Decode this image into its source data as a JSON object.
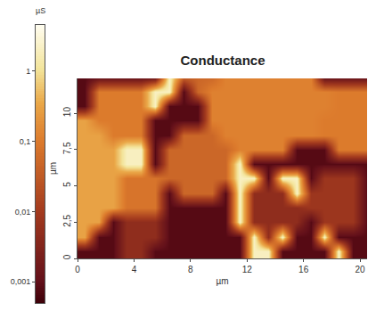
{
  "chart_data": {
    "type": "heatmap",
    "title": "Conductance",
    "x_label": "µm",
    "y_label": "µm",
    "colorbar_title": "µS",
    "x": [
      0.5,
      1.5,
      2.5,
      3.5,
      4.5,
      5.5,
      6.5,
      7.5,
      8.5,
      9.5,
      10.5,
      11.5,
      12.5,
      13.5,
      14.5,
      15.5,
      16.5,
      17.5,
      18.5,
      19.5,
      20.5
    ],
    "y": [
      0.5,
      1.5,
      2.5,
      3.5,
      4.5,
      5.5,
      6.5,
      7.5,
      8.5,
      9.5,
      10.5,
      11.5,
      12.5
    ],
    "cells": [
      [
        0.0008,
        0.0008,
        0.0008,
        0.005,
        0.005,
        0.0008,
        0.0008,
        0.0008,
        0.0008,
        0.0008,
        0.0008,
        0.0008,
        2,
        2,
        0.0008,
        0.0008,
        0.0008,
        0.0008,
        2,
        0.0008,
        0.0008
      ],
      [
        0.3,
        0.0008,
        0.0008,
        0.005,
        0.005,
        0.005,
        0.0008,
        0.0008,
        0.0008,
        0.0008,
        0.0008,
        0.0008,
        2,
        0.005,
        2,
        0.0008,
        0.0008,
        2,
        0.0008,
        0.0008,
        0.0008
      ],
      [
        0.3,
        0.3,
        0.0008,
        0.005,
        0.005,
        0.005,
        0.0008,
        0.0008,
        0.0008,
        0.0008,
        0.0008,
        2,
        0.005,
        0.005,
        0.005,
        0.005,
        0.0008,
        0.008,
        0.008,
        0.008,
        0.0008
      ],
      [
        0.3,
        0.3,
        0.3,
        0.08,
        0.08,
        0.08,
        0.0008,
        0.0008,
        0.0008,
        0.0008,
        0.0008,
        2,
        0.005,
        0.005,
        0.005,
        0.005,
        0.008,
        0.008,
        0.008,
        0.008,
        0.0008
      ],
      [
        0.3,
        0.3,
        0.3,
        0.08,
        0.08,
        0.08,
        0.0008,
        0.05,
        0.05,
        0.05,
        0.0008,
        2,
        0.005,
        0.005,
        0.005,
        2,
        0.008,
        0.008,
        0.008,
        0.008,
        0.0008
      ],
      [
        0.3,
        0.3,
        0.3,
        0.08,
        0.08,
        0.08,
        0.05,
        0.05,
        0.05,
        0.05,
        0.05,
        2,
        2,
        0.0008,
        2,
        2,
        0.0008,
        0.008,
        0.008,
        0.008,
        0.0008
      ],
      [
        0.3,
        0.3,
        0.3,
        2,
        2,
        0.0008,
        0.05,
        0.05,
        0.05,
        0.05,
        0.05,
        2,
        0.0008,
        0.0008,
        0.0008,
        0.0008,
        0.0008,
        0.0008,
        0.0008,
        0.0008,
        0.0008
      ],
      [
        0.3,
        0.3,
        0.3,
        2,
        2,
        0.0008,
        0.05,
        0.05,
        0.05,
        0.05,
        0.05,
        0.12,
        0.12,
        0.12,
        0.12,
        0.0008,
        0.0008,
        0.0008,
        0.1,
        0.1,
        0.1
      ],
      [
        0.3,
        0.3,
        0.1,
        0.1,
        0.1,
        0.0008,
        0.0008,
        0.05,
        0.05,
        0.05,
        0.12,
        0.12,
        0.12,
        0.12,
        0.12,
        0.12,
        0.12,
        0.1,
        0.1,
        0.1,
        0.1
      ],
      [
        0.3,
        0.1,
        0.1,
        0.1,
        0.1,
        0.0008,
        0.0008,
        0.0008,
        0.0008,
        0.12,
        0.12,
        0.12,
        0.12,
        0.12,
        0.12,
        0.12,
        0.12,
        0.1,
        0.1,
        0.1,
        0.1
      ],
      [
        0.0008,
        0.1,
        0.1,
        0.1,
        0.1,
        2,
        0.0008,
        0.0008,
        0.0008,
        0.12,
        0.12,
        0.12,
        0.12,
        0.12,
        0.12,
        0.12,
        0.12,
        0.12,
        0.1,
        0.1,
        0.1
      ],
      [
        0.0008,
        0.1,
        0.1,
        0.1,
        0.1,
        2,
        2,
        0.0008,
        0.05,
        0.12,
        0.12,
        0.12,
        0.12,
        0.12,
        0.12,
        0.12,
        0.12,
        0.12,
        0.1,
        0.1,
        0.1
      ],
      [
        0.0008,
        0.0008,
        0.0008,
        0.0008,
        0.0008,
        0.0008,
        2,
        0.05,
        0.05,
        0.05,
        0.12,
        0.12,
        0.12,
        0.12,
        0.12,
        0.12,
        0.12,
        0.0008,
        0.0008,
        0.0008,
        0.0008
      ]
    ],
    "xlim": [
      0,
      20.5
    ],
    "xticks": [
      0,
      4,
      8,
      12,
      16,
      20
    ],
    "ylim": [
      0,
      12.4
    ],
    "yticks": [
      0,
      {
        "value": 2.5,
        "label": "2,5"
      },
      5,
      {
        "value": 7.5,
        "label": "7,5"
      },
      10
    ],
    "color_range": [
      0.0005,
      4.5
    ],
    "color_ticks": [
      {
        "value": 0.001,
        "label": "0,001"
      },
      {
        "value": 0.01,
        "label": "0,01"
      },
      {
        "value": 0.1,
        "label": "0,1"
      },
      1
    ]
  }
}
